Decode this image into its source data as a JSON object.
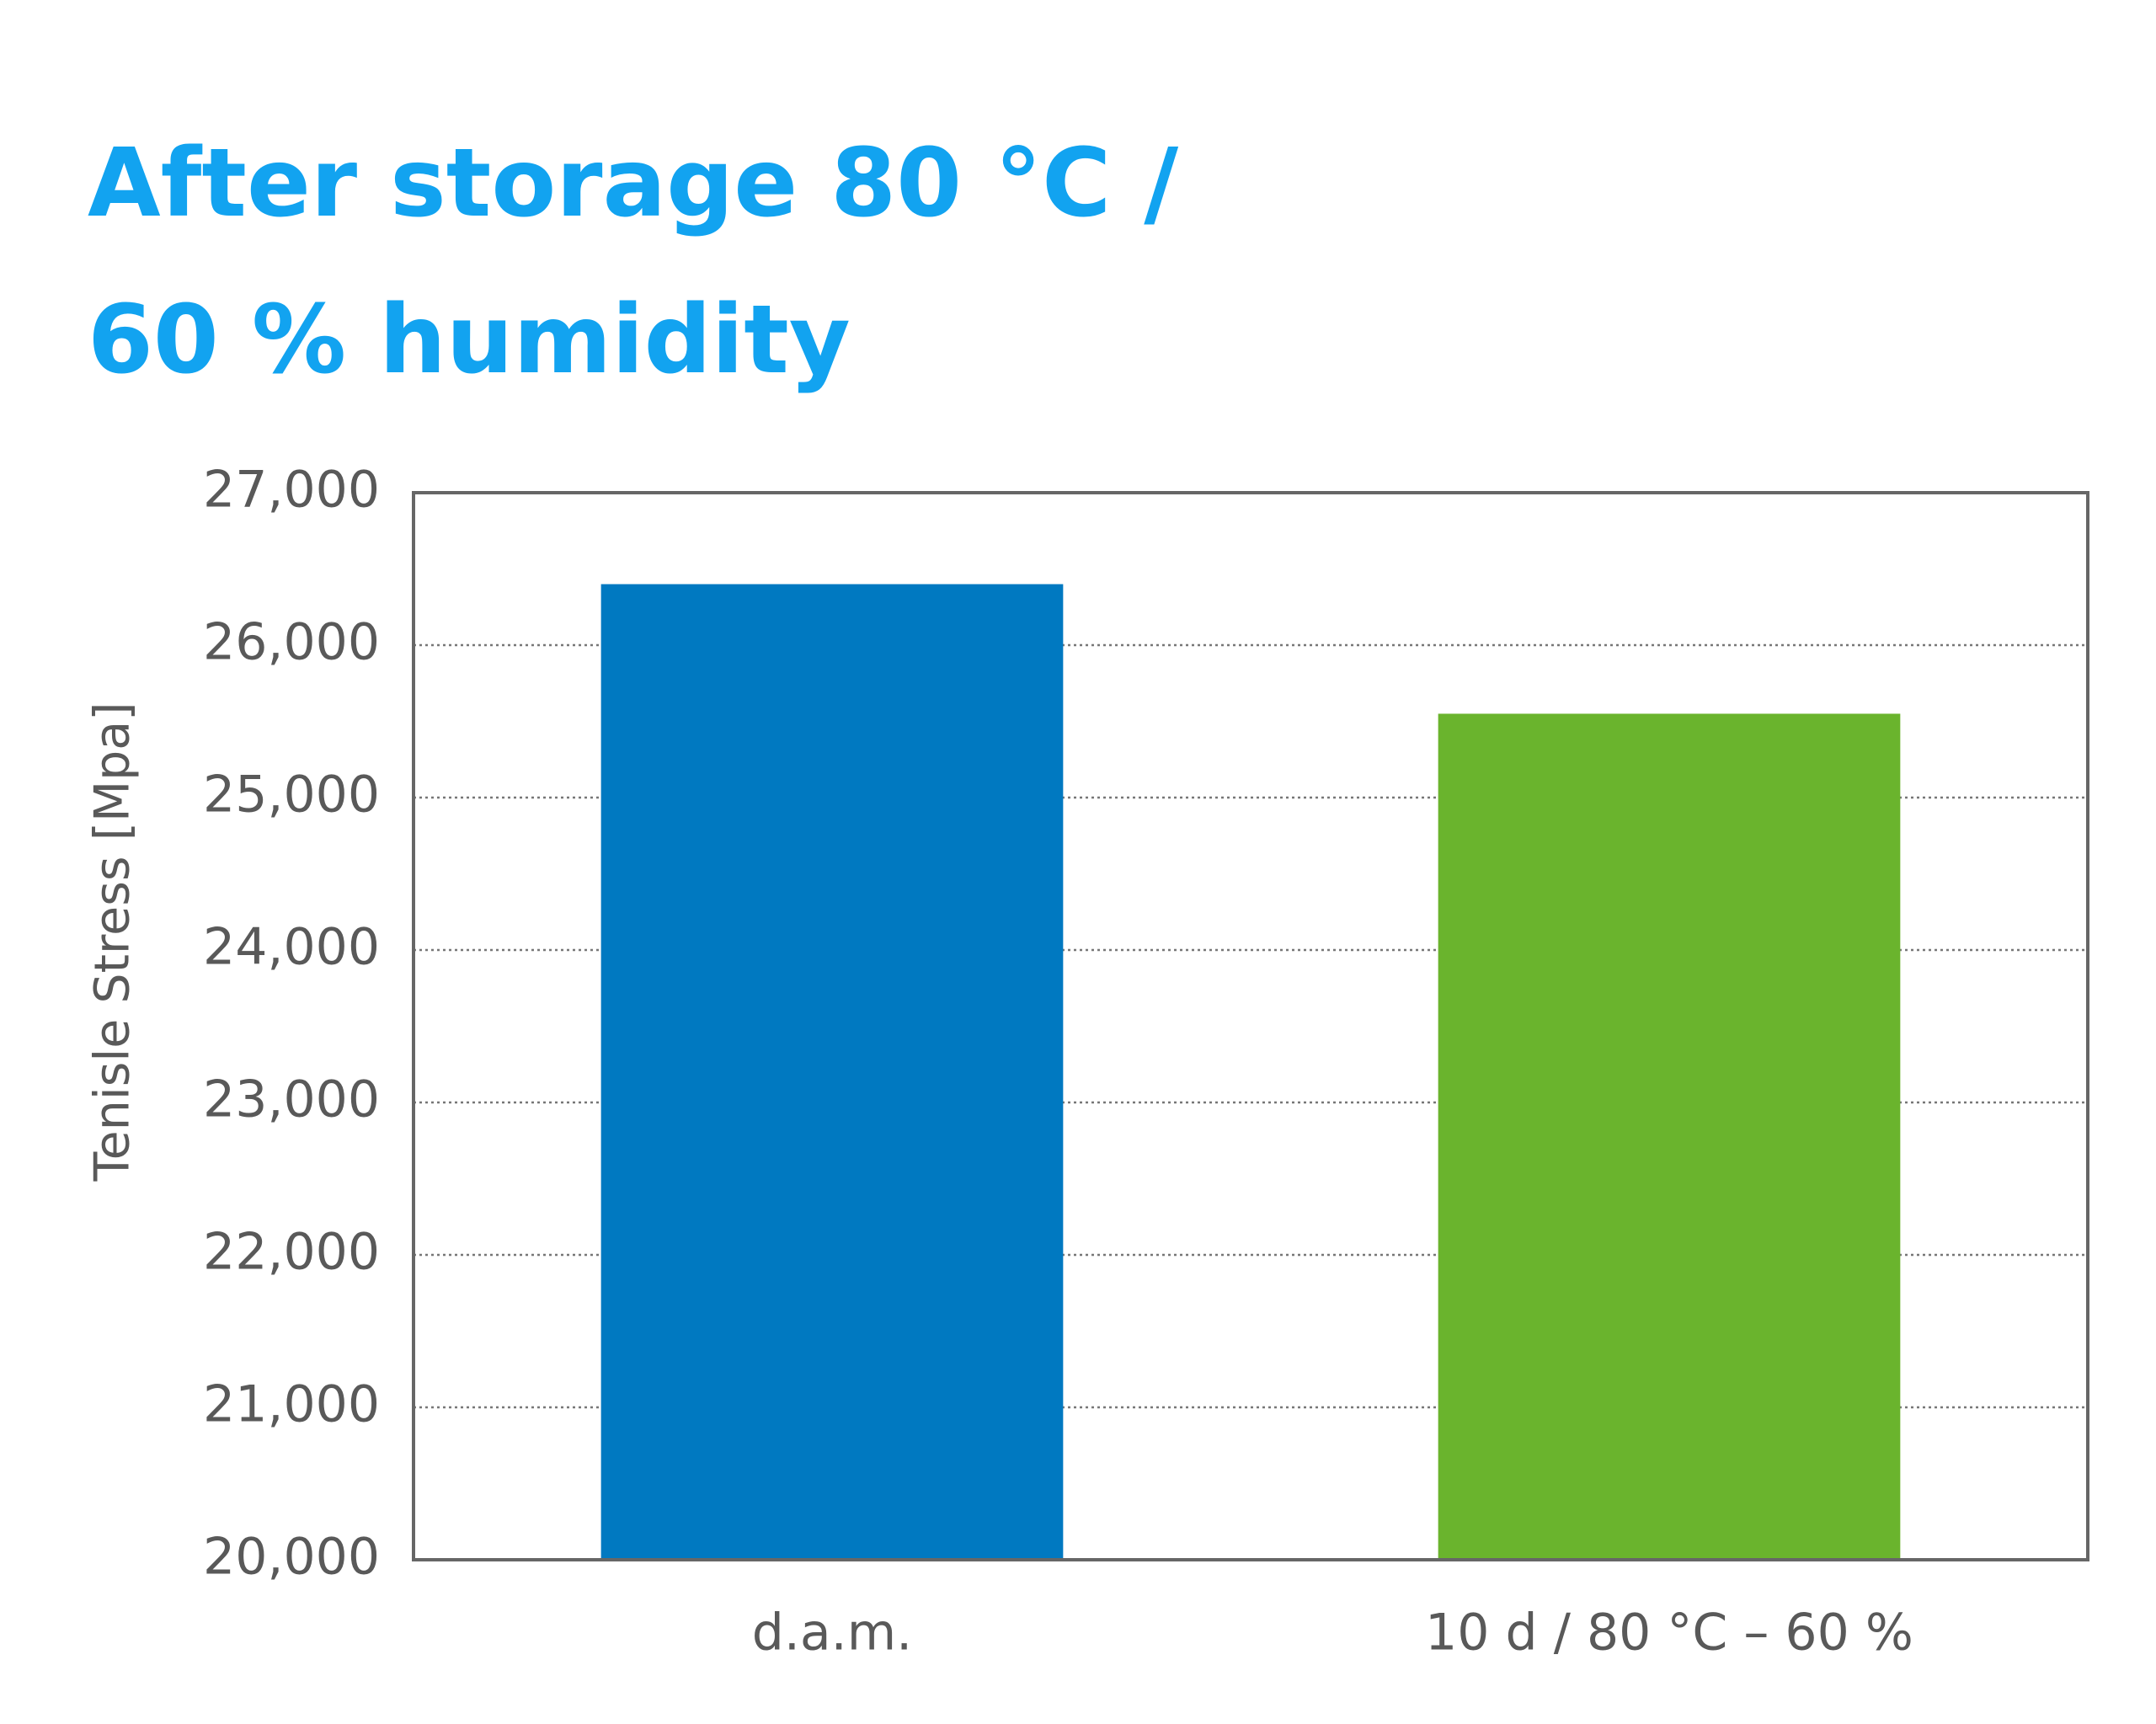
{
  "chart_data": {
    "type": "bar",
    "title": [
      "After storage 80 °C /",
      "60 % humidity"
    ],
    "y_label": "Tenisle Stress [Mpa]",
    "categories": [
      "d.a.m.",
      "10 d / 80 °C – 60 %"
    ],
    "values": [
      26400,
      25550
    ],
    "colors": [
      "#0079c1",
      "#6ab42d"
    ],
    "ylim": [
      20000,
      27000
    ],
    "yticks": [
      {
        "value": 20000,
        "label": "20,000"
      },
      {
        "value": 21000,
        "label": "21,000"
      },
      {
        "value": 22000,
        "label": "22,000"
      },
      {
        "value": 23000,
        "label": "23,000"
      },
      {
        "value": 24000,
        "label": "24,000"
      },
      {
        "value": 25000,
        "label": "25,000"
      },
      {
        "value": 26000,
        "label": "26,000"
      },
      {
        "value": 27000,
        "label": "27,000"
      }
    ],
    "grid": true
  }
}
